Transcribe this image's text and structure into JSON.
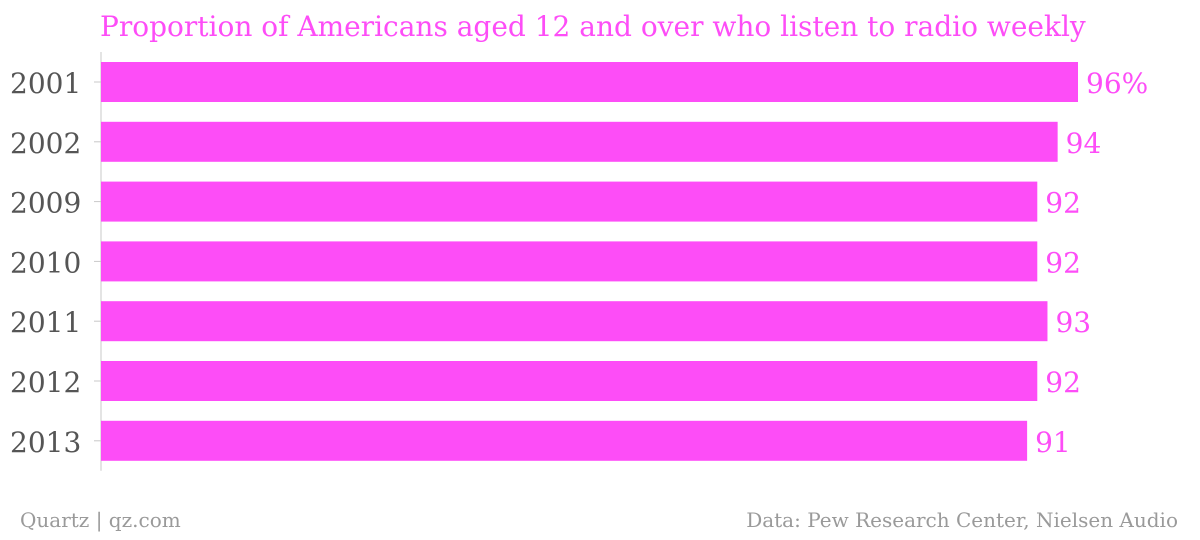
{
  "chart_data": {
    "type": "bar",
    "orientation": "horizontal",
    "title": "Proportion of Americans aged 12 and over who listen to radio weekly",
    "categories": [
      "2001",
      "2002",
      "2009",
      "2010",
      "2011",
      "2012",
      "2013"
    ],
    "values": [
      96,
      94,
      92,
      92,
      93,
      92,
      91
    ],
    "value_labels": [
      "96%",
      "94",
      "92",
      "92",
      "93",
      "92",
      "91"
    ],
    "xlim": [
      0,
      96
    ],
    "grid": false,
    "colors": {
      "bar": "#fd4df7",
      "title": "#fd4df7",
      "value_label": "#fd4df7",
      "category_label": "#555555",
      "axis": "#c8c8c8",
      "footer": "#9a9a9a"
    }
  },
  "footer": {
    "source_left": "Quartz | qz.com",
    "source_right": "Data: Pew Research Center, Nielsen Audio"
  }
}
